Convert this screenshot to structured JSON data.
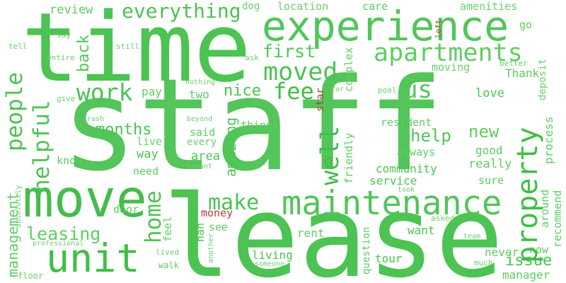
{
  "words": {
    "staff": "staff",
    "lease": "lease",
    "time": "time",
    "move": "move",
    "experience": "experience",
    "unit": "unit",
    "maintenance": "maintenance",
    "property": "property",
    "apartments": "apartments",
    "make": "make",
    "home": "home",
    "moved": "moved",
    "people": "people",
    "helpful": "helpful",
    "work": "work",
    "fee": "fee",
    "us": "us",
    "first": "first",
    "back": "back",
    "everything": "everything",
    "well": "well",
    "management": "management",
    "leasing": "leasing",
    "months": "months",
    "issue": "issue",
    "new": "new",
    "nice": "nice",
    "help": "help",
    "amazing": "amazing",
    "process": "process",
    "review": "review",
    "dog": "dog",
    "location": "location",
    "care": "care",
    "amenities": "amenities",
    "go": "go",
    "left": "left",
    "complex": "complex",
    "deposit": "deposit",
    "thank": "Thank",
    "moving": "moving",
    "better": "better",
    "love": "love",
    "pay": "pay",
    "two": "two",
    "star": "star",
    "far": "far",
    "pool": "pool",
    "nothing": "nothing",
    "give": "give",
    "trash": "trash",
    "said": "said",
    "every": "every",
    "things": "things",
    "friendly": "friendly",
    "resident": "resident",
    "beyond": "beyond",
    "area": "area",
    "live": "live",
    "way": "way",
    "know": "know",
    "always": "always",
    "good": "good",
    "really": "really",
    "recommend": "recommend",
    "around": "around",
    "community": "community",
    "service": "service",
    "sure": "sure",
    "need": "need",
    "tenant": "tenant",
    "door": "door",
    "money": "money",
    "took": "took",
    "feel": "feel",
    "asked": "asked",
    "rent": "rent",
    "want": "want",
    "see": "see",
    "nan": "nan",
    "question": "question",
    "team": "team",
    "never": "never",
    "now": "now",
    "manager": "manager",
    "much": "much",
    "living": "living",
    "tour": "tour",
    "someone": "someone",
    "another": "another",
    "lived": "lived",
    "walk": "walk",
    "professional": "professional",
    "absolutely": "absolutely",
    "floor": "floor",
    "say": "say",
    "tell": "tell",
    "entire": "entire",
    "still": "still",
    "ask": "ask"
  }
}
